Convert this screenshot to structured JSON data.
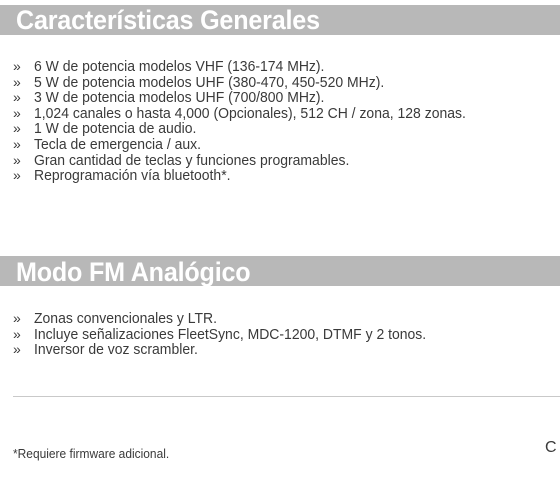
{
  "sections": [
    {
      "title": "Características Generales",
      "bullet_marker": "»",
      "items": [
        "6 W de potencia modelos VHF (136-174 MHz).",
        "5 W de potencia modelos UHF (380-470, 450-520 MHz).",
        "3 W de potencia modelos UHF (700/800 MHz).",
        "1,024 canales o hasta 4,000 (Opcionales), 512 CH / zona, 128 zonas.",
        "1 W de potencia de audio.",
        "Tecla de emergencia / aux.",
        "Gran cantidad de teclas y funciones programables.",
        "Reprogramación vía bluetooth*."
      ]
    },
    {
      "title": "Modo FM Analógico",
      "bullet_marker": "»",
      "items": [
        "Zonas convencionales y LTR.",
        "Incluye señalizaciones FleetSync, MDC-1200, DTMF y 2 tonos.",
        "Inversor de voz scrambler."
      ]
    }
  ],
  "footnote": "*Requiere firmware adicional.",
  "corner_text": "C",
  "colors": {
    "header_bg": "#b8b8b8",
    "header_text": "#ffffff",
    "body_text": "#3a3a3a",
    "divider": "#c9c9c9"
  }
}
